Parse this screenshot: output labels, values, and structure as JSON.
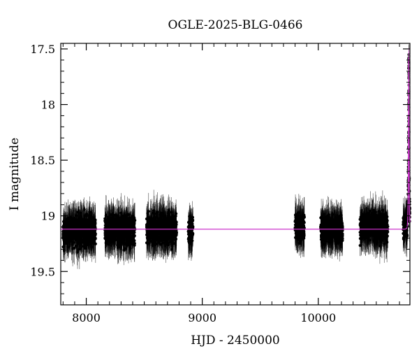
{
  "chart_data": {
    "type": "scatter",
    "title": "OGLE-2025-BLG-0466",
    "xlabel": "HJD - 2450000",
    "ylabel": "I magnitude",
    "xlim": [
      7780,
      10790
    ],
    "ylim": [
      19.8,
      17.45
    ],
    "y_inverted": true,
    "x_ticks": [
      8000,
      9000,
      10000
    ],
    "y_ticks": [
      17.5,
      18,
      18.5,
      19,
      19.5
    ],
    "grid": false,
    "legend": "none",
    "colors": {
      "points": "#000000",
      "model": "#cc33cc"
    },
    "baseline_mag": 19.12,
    "seasons": [
      {
        "start": 7800,
        "end": 8080,
        "center": 19.14,
        "scatter": 0.16
      },
      {
        "start": 8160,
        "end": 8420,
        "center": 19.13,
        "scatter": 0.15
      },
      {
        "start": 8520,
        "end": 8780,
        "center": 19.12,
        "scatter": 0.16
      },
      {
        "start": 8880,
        "end": 8920,
        "center": 19.12,
        "scatter": 0.13
      },
      {
        "start": 9800,
        "end": 9880,
        "center": 19.1,
        "scatter": 0.15
      },
      {
        "start": 10020,
        "end": 10210,
        "center": 19.12,
        "scatter": 0.14
      },
      {
        "start": 10360,
        "end": 10600,
        "center": 19.1,
        "scatter": 0.15
      },
      {
        "start": 10730,
        "end": 10790,
        "center": 19.1,
        "scatter": 0.15
      }
    ],
    "event": {
      "t0": 10780,
      "peak_mag": 17.6,
      "tE": 5
    }
  }
}
